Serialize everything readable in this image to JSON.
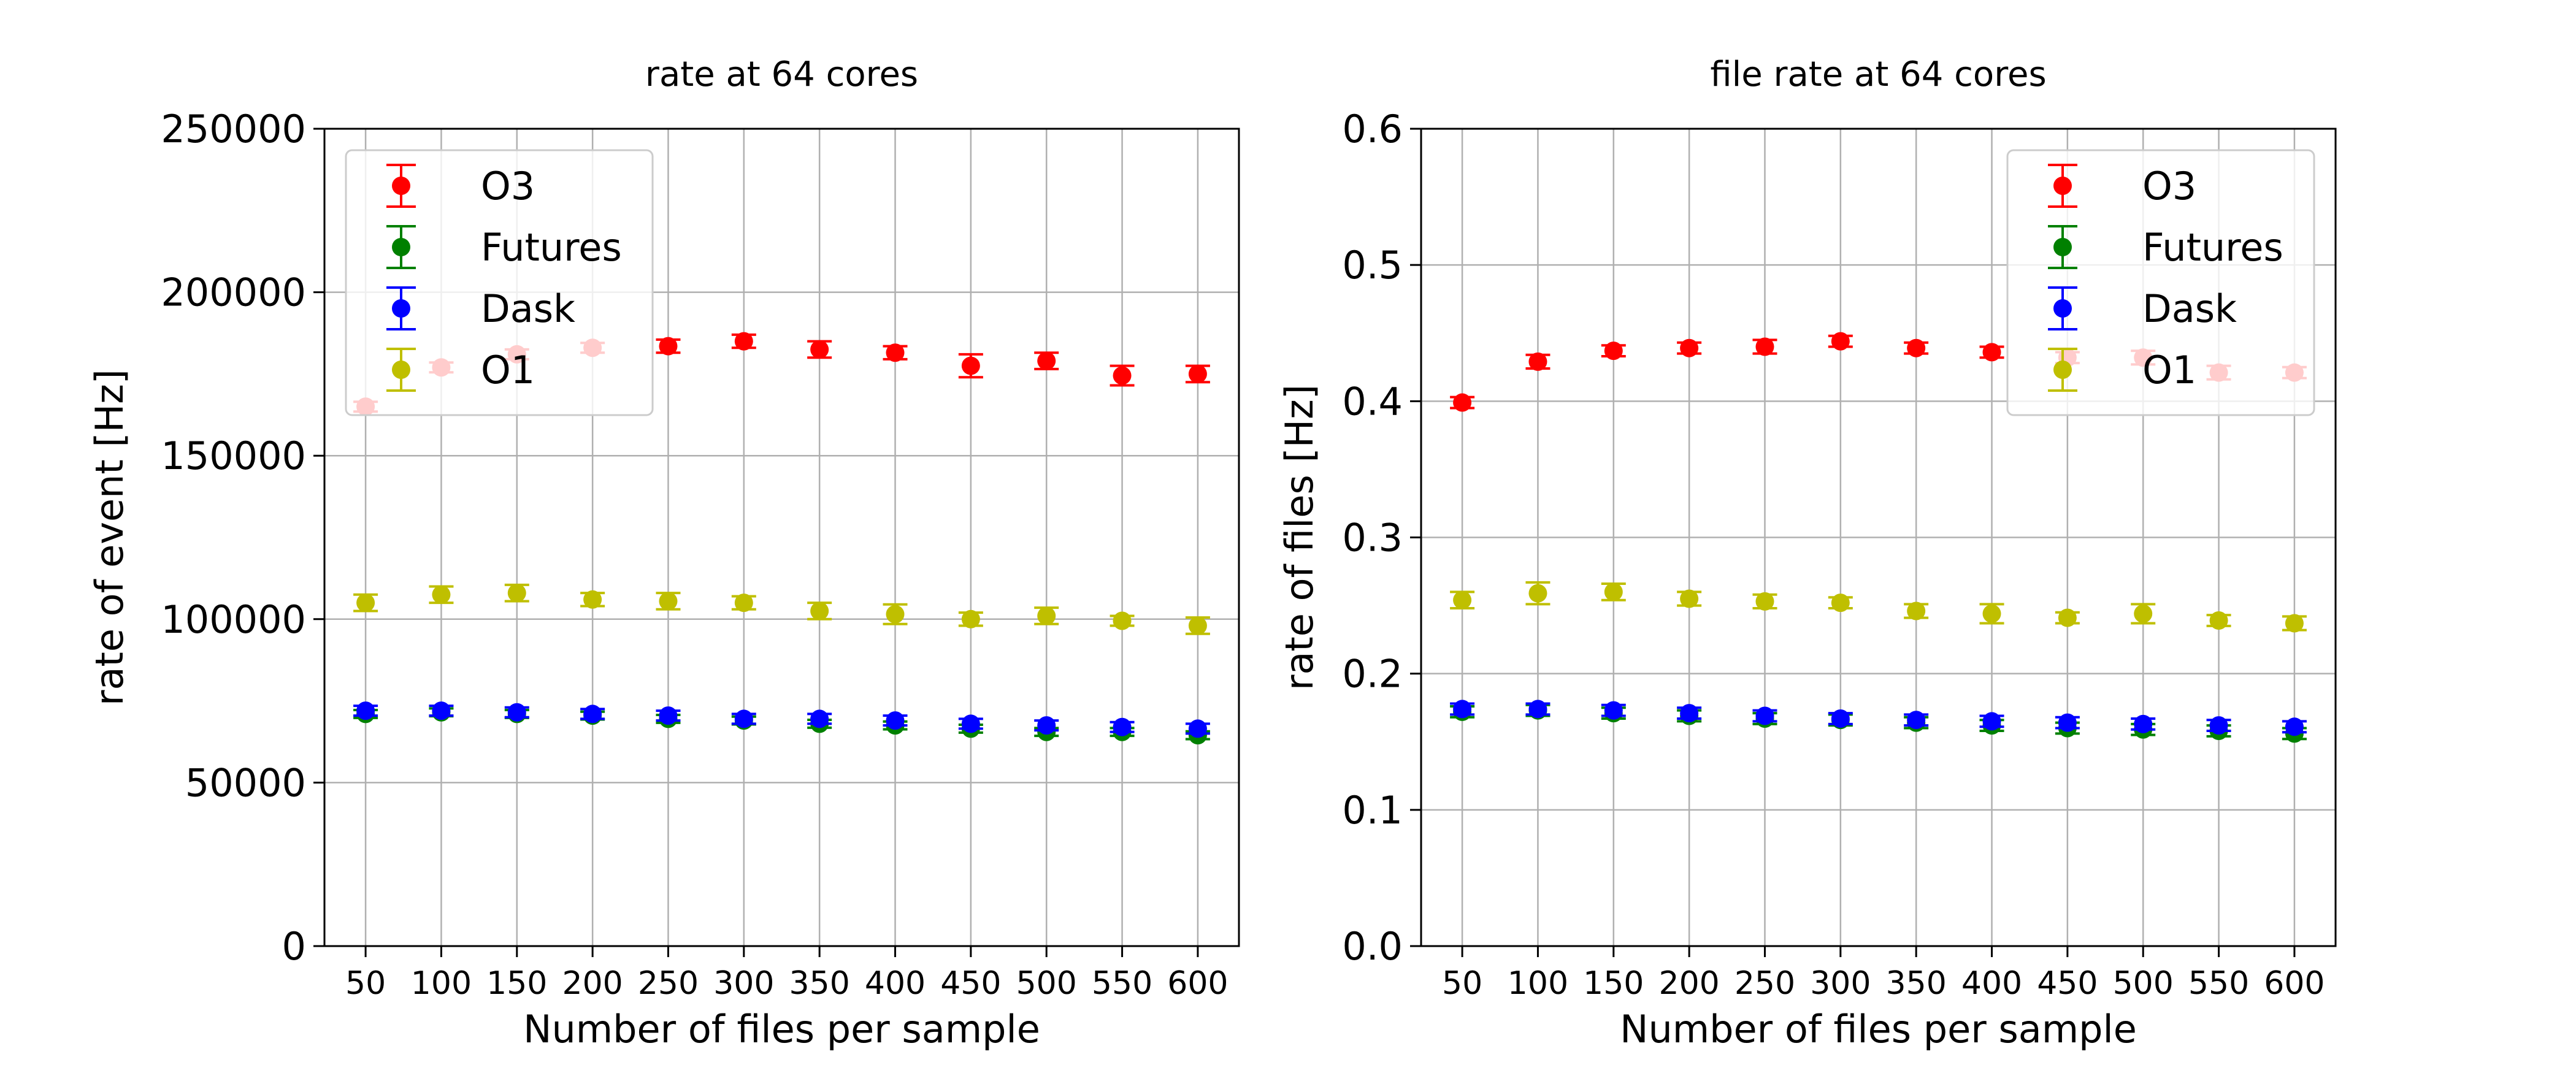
{
  "chart_data": [
    {
      "type": "scatter",
      "title": "rate at 64 cores",
      "xlabel": "Number of files per sample",
      "ylabel": "rate of event [Hz]",
      "ylim": [
        0,
        250000
      ],
      "yticks": [
        "0",
        "50000",
        "100000",
        "150000",
        "200000",
        "250000"
      ],
      "ytick_values": [
        0,
        50000,
        100000,
        150000,
        200000,
        250000
      ],
      "categories": [
        "50",
        "100",
        "150",
        "200",
        "250",
        "300",
        "350",
        "400",
        "450",
        "500",
        "550",
        "600"
      ],
      "grid": true,
      "legend_position": "top-left",
      "series": [
        {
          "name": "O3",
          "color": "#ff0000",
          "values": [
            165000,
            177000,
            181000,
            183000,
            183500,
            185000,
            182500,
            181500,
            177500,
            179000,
            174500,
            175000
          ],
          "errors": [
            1500,
            1500,
            1500,
            1500,
            2000,
            2000,
            2500,
            2000,
            3500,
            2500,
            3000,
            2500
          ]
        },
        {
          "name": "Futures",
          "color": "#008000",
          "values": [
            71000,
            71500,
            71000,
            70500,
            69500,
            69000,
            68000,
            67500,
            66500,
            65500,
            65500,
            64500
          ],
          "errors": [
            1200,
            1200,
            1200,
            1200,
            1200,
            1200,
            1200,
            1200,
            1200,
            1200,
            1200,
            1200
          ]
        },
        {
          "name": "Dask",
          "color": "#0000ff",
          "values": [
            72000,
            72000,
            71500,
            71000,
            70500,
            69500,
            69500,
            69000,
            68000,
            67500,
            67000,
            66500
          ],
          "errors": [
            1500,
            1500,
            1500,
            1500,
            1500,
            1500,
            1500,
            1500,
            1500,
            1500,
            1500,
            1500
          ]
        },
        {
          "name": "O1",
          "color": "#bfbf00",
          "values": [
            105000,
            107500,
            108000,
            106000,
            105500,
            105000,
            102500,
            101500,
            100000,
            101000,
            99500,
            98000
          ],
          "errors": [
            2500,
            2500,
            2500,
            2000,
            2500,
            2000,
            2500,
            3000,
            2000,
            2500,
            1500,
            2500
          ]
        }
      ]
    },
    {
      "type": "scatter",
      "title": "file rate at 64 cores",
      "xlabel": "Number of files per sample",
      "ylabel": "rate of files [Hz]",
      "ylim": [
        0,
        0.6
      ],
      "yticks": [
        "0.0",
        "0.1",
        "0.2",
        "0.3",
        "0.4",
        "0.5",
        "0.6"
      ],
      "ytick_values": [
        0,
        0.1,
        0.2,
        0.3,
        0.4,
        0.5,
        0.6
      ],
      "categories": [
        "50",
        "100",
        "150",
        "200",
        "250",
        "300",
        "350",
        "400",
        "450",
        "500",
        "550",
        "600"
      ],
      "grid": true,
      "legend_position": "top-right",
      "series": [
        {
          "name": "O3",
          "color": "#ff0000",
          "values": [
            0.399,
            0.429,
            0.437,
            0.439,
            0.44,
            0.444,
            0.439,
            0.436,
            0.432,
            0.432,
            0.421,
            0.421
          ],
          "errors": [
            0.004,
            0.005,
            0.004,
            0.004,
            0.005,
            0.004,
            0.004,
            0.004,
            0.004,
            0.005,
            0.005,
            0.004
          ]
        },
        {
          "name": "Futures",
          "color": "#008000",
          "values": [
            0.172,
            0.173,
            0.171,
            0.169,
            0.167,
            0.166,
            0.164,
            0.162,
            0.16,
            0.159,
            0.158,
            0.156
          ],
          "errors": [
            0.004,
            0.004,
            0.004,
            0.004,
            0.004,
            0.004,
            0.004,
            0.004,
            0.004,
            0.004,
            0.004,
            0.004
          ]
        },
        {
          "name": "Dask",
          "color": "#0000ff",
          "values": [
            0.174,
            0.174,
            0.173,
            0.171,
            0.169,
            0.167,
            0.166,
            0.165,
            0.164,
            0.163,
            0.162,
            0.161
          ],
          "errors": [
            0.004,
            0.004,
            0.004,
            0.004,
            0.004,
            0.004,
            0.004,
            0.004,
            0.004,
            0.004,
            0.004,
            0.004
          ]
        },
        {
          "name": "O1",
          "color": "#bfbf00",
          "values": [
            0.254,
            0.259,
            0.26,
            0.255,
            0.253,
            0.252,
            0.246,
            0.244,
            0.241,
            0.244,
            0.239,
            0.237
          ],
          "errors": [
            0.006,
            0.008,
            0.006,
            0.005,
            0.005,
            0.004,
            0.005,
            0.007,
            0.004,
            0.007,
            0.004,
            0.005
          ]
        }
      ]
    }
  ]
}
